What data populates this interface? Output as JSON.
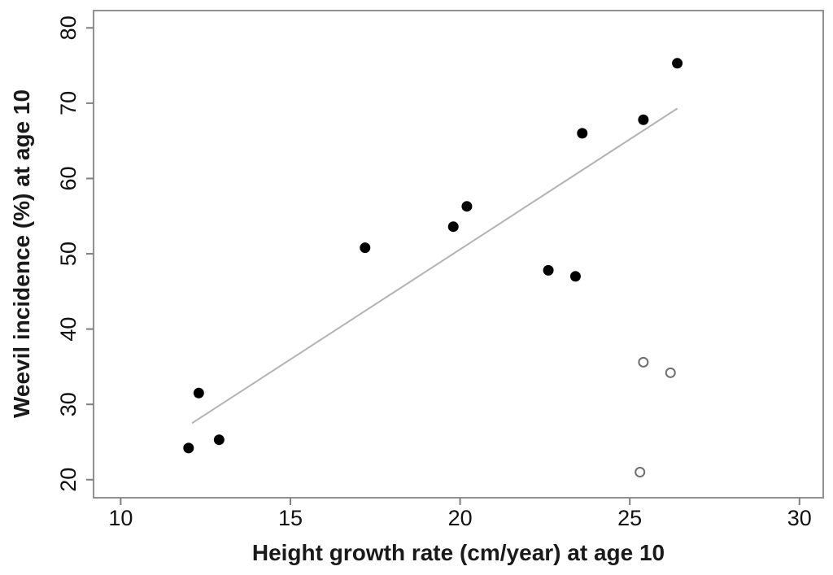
{
  "figure": {
    "background": "#ffffff",
    "border_color": "#919191",
    "tick_color": "#7f7f7f",
    "text_color": "#111111"
  },
  "chart_data": {
    "type": "scatter",
    "title": "",
    "xlabel": "Height growth rate (cm/year) at age 10",
    "ylabel": "Weevil incidence (%) at age 10",
    "xlim": [
      9.2,
      30.7
    ],
    "ylim": [
      17.6,
      82.3
    ],
    "x_ticks": [
      10,
      15,
      20,
      25,
      30
    ],
    "y_ticks": [
      20,
      30,
      40,
      50,
      60,
      70,
      80
    ],
    "grid": false,
    "legend": "none",
    "series": [
      {
        "name": "filled-points",
        "marker": "filled-circle",
        "color": "#000000",
        "points": [
          [
            12.0,
            24.2
          ],
          [
            12.3,
            31.5
          ],
          [
            12.9,
            25.3
          ],
          [
            17.2,
            50.8
          ],
          [
            19.8,
            53.6
          ],
          [
            20.2,
            56.3
          ],
          [
            22.6,
            47.8
          ],
          [
            23.4,
            47.0
          ],
          [
            23.6,
            66.0
          ],
          [
            25.4,
            67.8
          ],
          [
            26.4,
            75.3
          ]
        ]
      },
      {
        "name": "open-points",
        "marker": "open-circle",
        "color": "#6e6e6e",
        "points": [
          [
            25.4,
            35.6
          ],
          [
            26.2,
            34.2
          ],
          [
            25.3,
            21.0
          ]
        ]
      }
    ],
    "trend_line": {
      "x1": 12.1,
      "y1": 27.5,
      "x2": 26.4,
      "y2": 69.3,
      "color": "#b3b3b3"
    }
  }
}
